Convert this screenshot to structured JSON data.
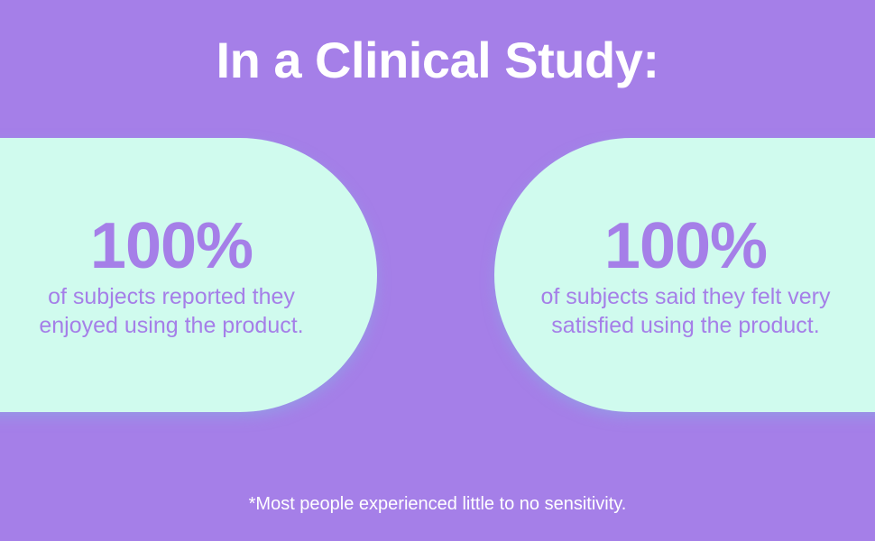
{
  "header": {
    "title": "In a Clinical Study:"
  },
  "stats": [
    {
      "value": "100%",
      "lines": [
        "of subjects reported they",
        "enjoyed using the product."
      ]
    },
    {
      "value": "100%",
      "lines": [
        "of subjects said they felt very",
        "satisfied using the product."
      ]
    }
  ],
  "footnote": "*Most people experienced little to no sensitivity."
}
